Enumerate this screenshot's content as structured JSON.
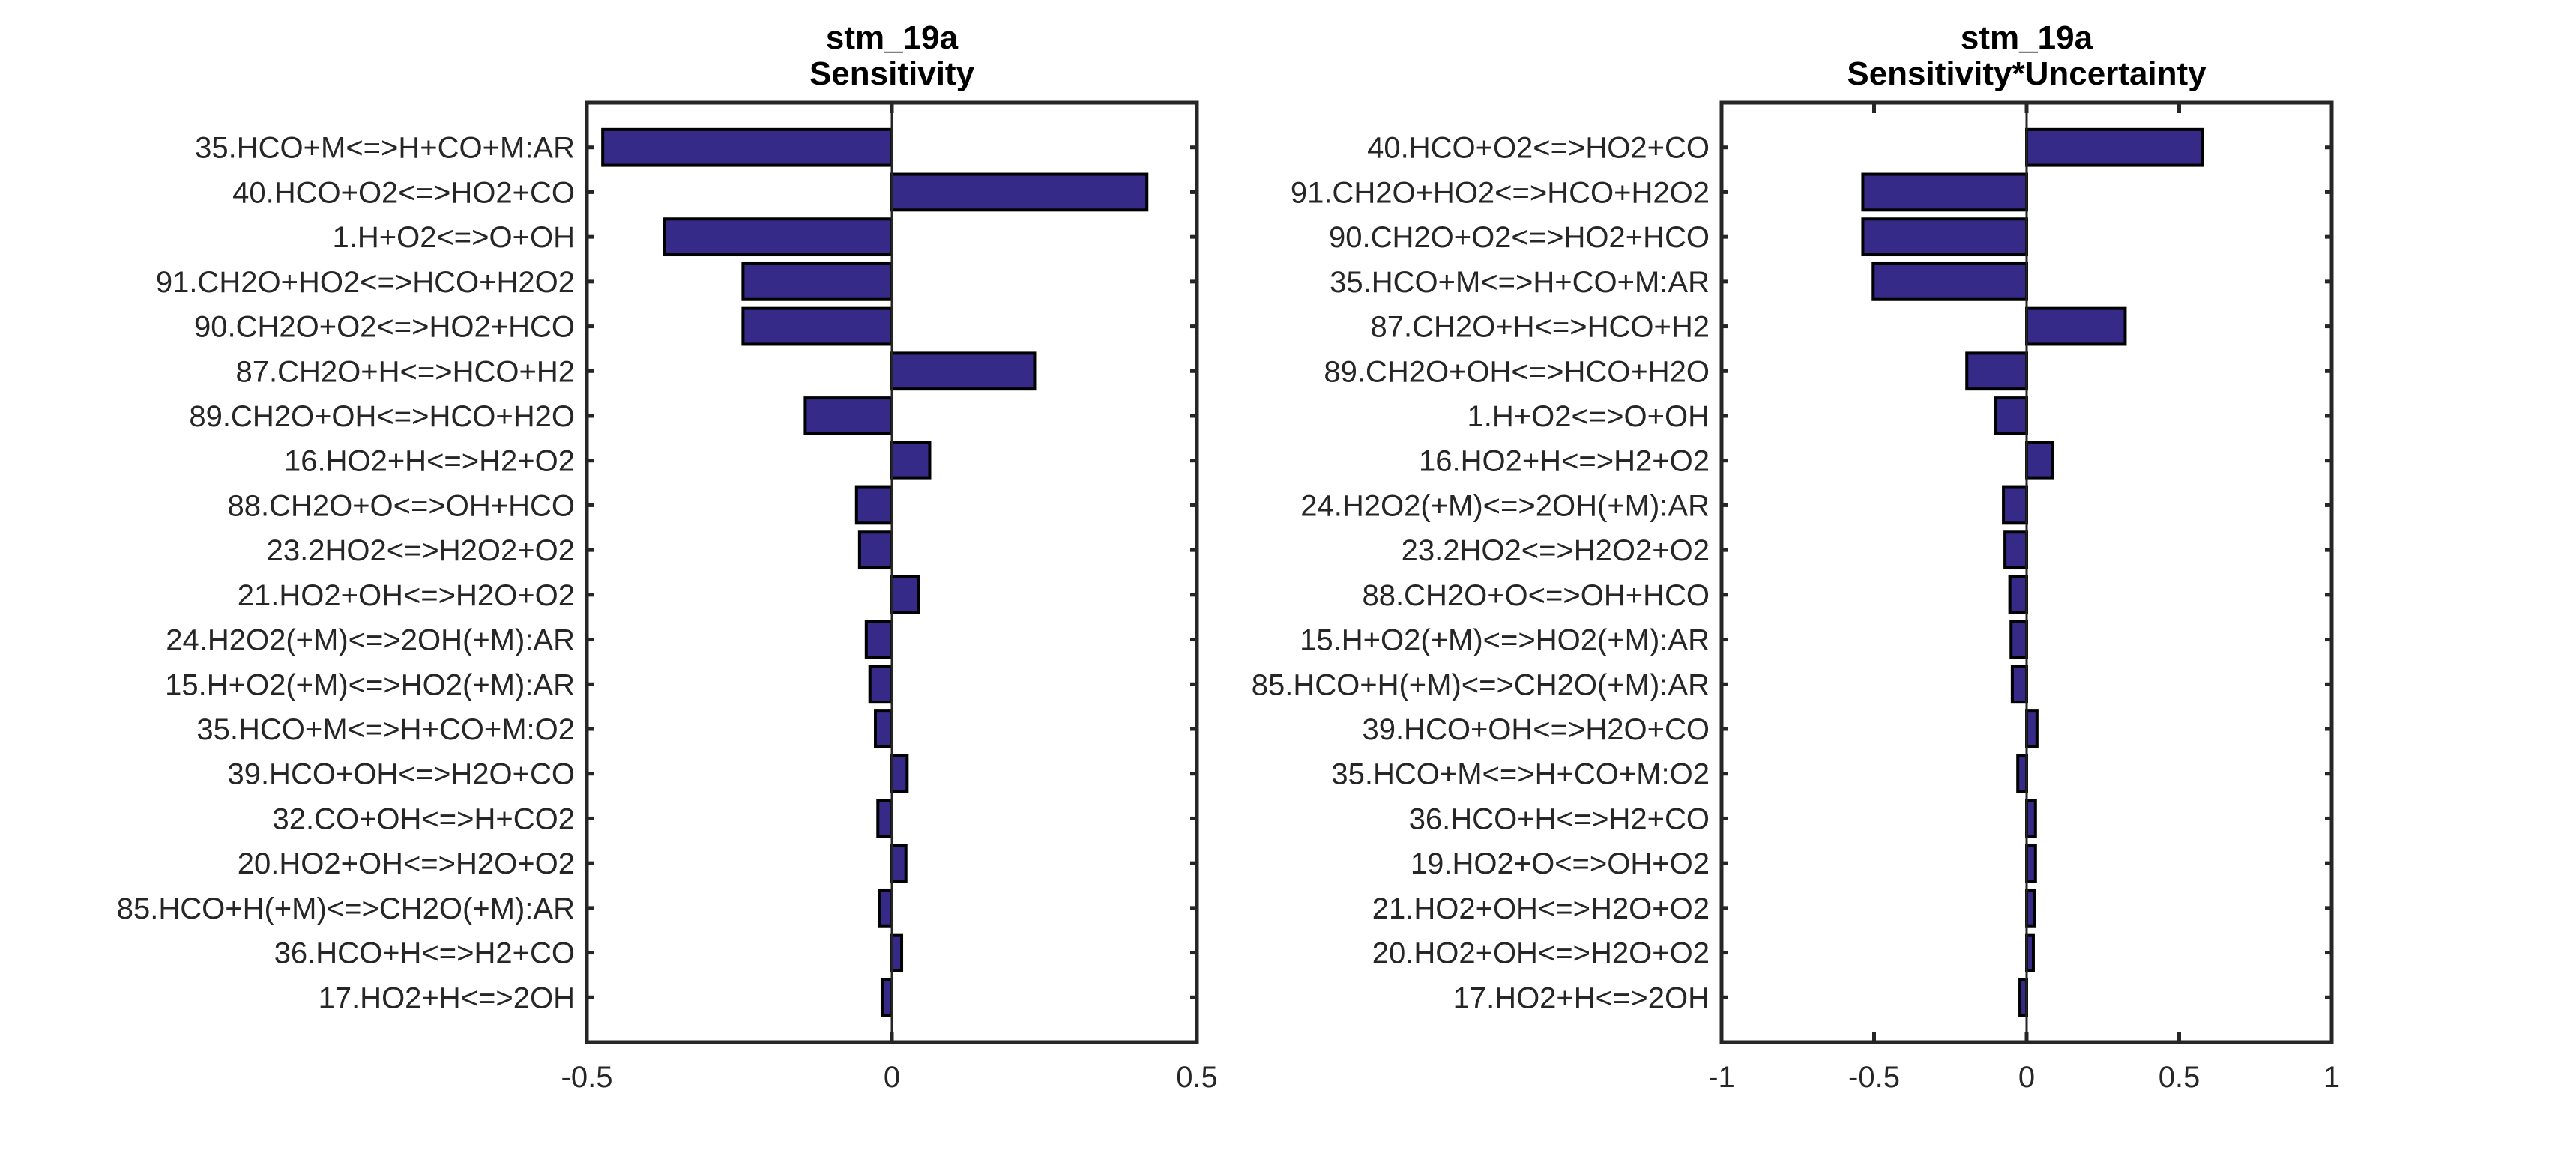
{
  "chart_data": [
    {
      "type": "bar",
      "orientation": "horizontal",
      "title": "stm_19a",
      "subtitle": "Sensitivity",
      "xlabel": "",
      "ylabel": "",
      "xlim": [
        -0.5,
        0.5
      ],
      "xticks": [
        -0.5,
        0,
        0.5
      ],
      "xtick_labels": [
        "-0.5",
        "0",
        "0.5"
      ],
      "grid": false,
      "bar_color": "#352a87",
      "categories": [
        "35.HCO+M<=>H+CO+M:AR",
        "40.HCO+O2<=>HO2+CO",
        "1.H+O2<=>O+OH",
        "91.CH2O+HO2<=>HCO+H2O2",
        "90.CH2O+O2<=>HO2+HCO",
        "87.CH2O+H<=>HCO+H2",
        "89.CH2O+OH<=>HCO+H2O",
        "16.HO2+H<=>H2+O2",
        "88.CH2O+O<=>OH+HCO",
        "23.2HO2<=>H2O2+O2",
        "21.HO2+OH<=>H2O+O2",
        "24.H2O2(+M)<=>2OH(+M):AR",
        "15.H+O2(+M)<=>HO2(+M):AR",
        "35.HCO+M<=>H+CO+M:O2",
        "39.HCO+OH<=>H2O+CO",
        "32.CO+OH<=>H+CO2",
        "20.HO2+OH<=>H2O+O2",
        "85.HCO+H(+M)<=>CH2O(+M):AR",
        "36.HCO+H<=>H2+CO",
        "17.HO2+H<=>2OH"
      ],
      "values": [
        -0.474,
        0.418,
        -0.373,
        -0.244,
        -0.244,
        0.234,
        -0.142,
        0.062,
        -0.058,
        -0.053,
        0.043,
        -0.042,
        -0.036,
        -0.027,
        0.025,
        -0.023,
        0.023,
        -0.02,
        0.016,
        -0.016
      ]
    },
    {
      "type": "bar",
      "orientation": "horizontal",
      "title": "stm_19a",
      "subtitle": "Sensitivity*Uncertainty",
      "xlabel": "",
      "ylabel": "",
      "xlim": [
        -1,
        1
      ],
      "xticks": [
        -1,
        -0.5,
        0,
        0.5,
        1
      ],
      "xtick_labels": [
        "-1",
        "-0.5",
        "0",
        "0.5",
        "1"
      ],
      "grid": false,
      "bar_color": "#352a87",
      "categories": [
        "40.HCO+O2<=>HO2+CO",
        "91.CH2O+HO2<=>HCO+H2O2",
        "90.CH2O+O2<=>HO2+HCO",
        "35.HCO+M<=>H+CO+M:AR",
        "87.CH2O+H<=>HCO+H2",
        "89.CH2O+OH<=>HCO+H2O",
        "1.H+O2<=>O+OH",
        "16.HO2+H<=>H2+O2",
        "24.H2O2(+M)<=>2OH(+M):AR",
        "23.2HO2<=>H2O2+O2",
        "88.CH2O+O<=>OH+HCO",
        "15.H+O2(+M)<=>HO2(+M):AR",
        "85.HCO+H(+M)<=>CH2O(+M):AR",
        "39.HCO+OH<=>H2O+CO",
        "35.HCO+M<=>H+CO+M:O2",
        "36.HCO+H<=>H2+CO",
        "19.HO2+O<=>OH+O2",
        "21.HO2+OH<=>H2O+O2",
        "20.HO2+OH<=>H2O+O2",
        "17.HO2+H<=>2OH"
      ],
      "values": [
        0.577,
        -0.537,
        -0.537,
        -0.503,
        0.323,
        -0.196,
        -0.102,
        0.084,
        -0.076,
        -0.071,
        -0.055,
        -0.051,
        -0.047,
        0.034,
        -0.029,
        0.029,
        0.029,
        0.026,
        0.022,
        -0.022
      ]
    }
  ]
}
